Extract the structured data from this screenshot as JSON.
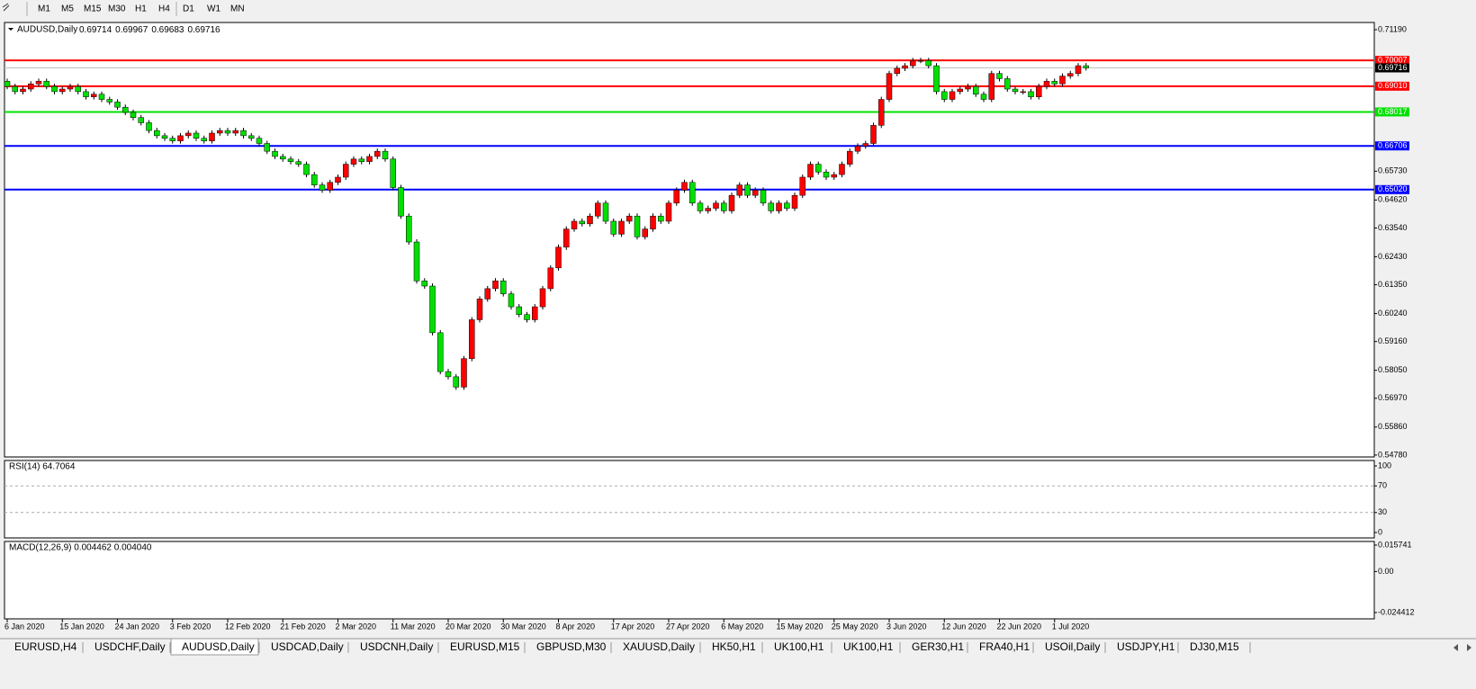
{
  "toolbar": {
    "timeframes": [
      "M1",
      "M5",
      "M15",
      "M30",
      "H1",
      "H4",
      "D1",
      "W1",
      "MN"
    ]
  },
  "tabs": [
    "EURUSD,H4",
    "USDCHF,Daily",
    "AUDUSD,Daily",
    "USDCAD,Daily",
    "USDCNH,Daily",
    "EURUSD,M15",
    "GBPUSD,M30",
    "XAUUSD,Daily",
    "HK50,H1",
    "UK100,H1",
    "UK100,H1",
    "GER30,H1",
    "FRA40,H1",
    "USOil,Daily",
    "USDJPY,H1",
    "DJ30,M15"
  ],
  "active_tab": 2,
  "chart_data": {
    "type": "candlestick",
    "title": "AUDUSD,Daily",
    "header_values": [
      0.69714,
      0.69967,
      0.69683,
      0.69716
    ],
    "bull_color": "#ff0000",
    "bear_color": "#00e000",
    "first_open": 0.692,
    "close": [
      0.69,
      0.688,
      0.689,
      0.691,
      0.692,
      0.69,
      0.688,
      0.689,
      0.69,
      0.688,
      0.686,
      0.687,
      0.685,
      0.684,
      0.682,
      0.68,
      0.678,
      0.676,
      0.673,
      0.671,
      0.67,
      0.669,
      0.671,
      0.672,
      0.67,
      0.669,
      0.672,
      0.673,
      0.672,
      0.673,
      0.671,
      0.67,
      0.668,
      0.665,
      0.663,
      0.662,
      0.661,
      0.66,
      0.656,
      0.652,
      0.65,
      0.653,
      0.655,
      0.66,
      0.662,
      0.661,
      0.663,
      0.665,
      0.662,
      0.651,
      0.64,
      0.63,
      0.615,
      0.613,
      0.595,
      0.58,
      0.578,
      0.574,
      0.585,
      0.6,
      0.608,
      0.612,
      0.615,
      0.61,
      0.605,
      0.602,
      0.6,
      0.605,
      0.612,
      0.62,
      0.628,
      0.635,
      0.638,
      0.637,
      0.64,
      0.645,
      0.638,
      0.633,
      0.638,
      0.64,
      0.632,
      0.635,
      0.64,
      0.638,
      0.645,
      0.65,
      0.653,
      0.645,
      0.642,
      0.643,
      0.645,
      0.642,
      0.648,
      0.652,
      0.648,
      0.65,
      0.645,
      0.642,
      0.645,
      0.643,
      0.648,
      0.655,
      0.66,
      0.657,
      0.655,
      0.656,
      0.66,
      0.665,
      0.667,
      0.668,
      0.675,
      0.685,
      0.695,
      0.697,
      0.698,
      0.7,
      0.7,
      0.698,
      0.688,
      0.685,
      0.688,
      0.689,
      0.69,
      0.687,
      0.685,
      0.695,
      0.693,
      0.689,
      0.688,
      0.688,
      0.686,
      0.69,
      0.692,
      0.691,
      0.694,
      0.695,
      0.698,
      0.69716
    ],
    "categories": [
      "6 Jan 2020",
      null,
      null,
      null,
      null,
      null,
      null,
      "15 Jan 2020",
      null,
      null,
      null,
      null,
      null,
      null,
      "24 Jan 2020",
      null,
      null,
      null,
      null,
      null,
      null,
      "3 Feb 2020",
      null,
      null,
      null,
      null,
      null,
      null,
      "12 Feb 2020",
      null,
      null,
      null,
      null,
      null,
      null,
      "21 Feb 2020",
      null,
      null,
      null,
      null,
      null,
      null,
      "2 Mar 2020",
      null,
      null,
      null,
      null,
      null,
      null,
      "11 Mar 2020",
      null,
      null,
      null,
      null,
      null,
      null,
      "20 Mar 2020",
      null,
      null,
      null,
      null,
      null,
      null,
      "30 Mar 2020",
      null,
      null,
      null,
      null,
      null,
      null,
      "8 Apr 2020",
      null,
      null,
      null,
      null,
      null,
      null,
      "17 Apr 2020",
      null,
      null,
      null,
      null,
      null,
      null,
      "27 Apr 2020",
      null,
      null,
      null,
      null,
      null,
      null,
      "6 May 2020",
      null,
      null,
      null,
      null,
      null,
      null,
      "15 May 2020",
      null,
      null,
      null,
      null,
      null,
      null,
      "25 May 2020",
      null,
      null,
      null,
      null,
      null,
      null,
      "3 Jun 2020",
      null,
      null,
      null,
      null,
      null,
      null,
      "12 Jun 2020",
      null,
      null,
      null,
      null,
      null,
      null,
      "22 Jun 2020",
      null,
      null,
      null,
      null,
      null,
      null,
      "1 Jul 2020",
      null,
      null,
      null,
      null
    ],
    "ylim": [
      0.54707,
      0.71468
    ],
    "yticks": [
      {
        "value": 0.7119,
        "label": "0.71190"
      },
      {
        "value": 0.6573,
        "label": "0.65730"
      },
      {
        "value": 0.6462,
        "label": "0.64620"
      },
      {
        "value": 0.6354,
        "label": "0.63540"
      },
      {
        "value": 0.6243,
        "label": "0.62430"
      },
      {
        "value": 0.6135,
        "label": "0.61350"
      },
      {
        "value": 0.6024,
        "label": "0.60240"
      },
      {
        "value": 0.5916,
        "label": "0.59160"
      },
      {
        "value": 0.5805,
        "label": "0.58050"
      },
      {
        "value": 0.5697,
        "label": "0.56970"
      },
      {
        "value": 0.5586,
        "label": "0.55860"
      },
      {
        "value": 0.5478,
        "label": "0.54780"
      }
    ],
    "levels": [
      {
        "value": 0.70007,
        "color": "#ff0000"
      },
      {
        "value": 0.6901,
        "label": "0.69010",
        "color": "#ff0000"
      },
      {
        "value": 0.68017,
        "color": "#00e000"
      },
      {
        "value": 0.66706,
        "color": "#0000ff"
      },
      {
        "value": 0.6502,
        "label": "0.65020",
        "color": "#0000ff"
      }
    ],
    "current_price": 0.69716,
    "rsi": {
      "label": "RSI(14) 64.7064",
      "ylim": [
        0,
        100
      ],
      "yticks": [
        0,
        30,
        70,
        100
      ],
      "levels": [
        30,
        70
      ]
    },
    "macd": {
      "label": "MACD(12,26,9) 0.004462 0.004040",
      "ylim": [
        -0.024412,
        0.015741
      ],
      "yticks": [
        {
          "value": 0.015741
        },
        {
          "value": 0,
          "label": "0.00"
        },
        {
          "value": -0.024412
        }
      ]
    }
  }
}
